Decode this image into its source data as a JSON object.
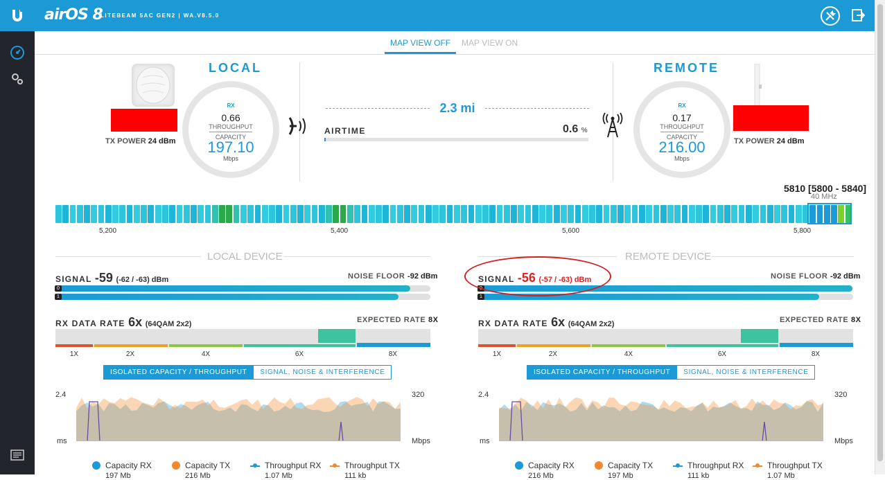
{
  "header": {
    "brand": "airOS 8",
    "device_line": "LITEBEAM 5AC GEN2 | WA.V8.5.0"
  },
  "view_tabs": [
    {
      "label": "MAP VIEW OFF",
      "active": true
    },
    {
      "label": "MAP VIEW ON",
      "active": false
    }
  ],
  "local": {
    "title": "LOCAL",
    "tx_power_label": "TX POWER",
    "tx_power_value": "24 dBm",
    "gauge": {
      "rx_label": "RX",
      "throughput": "0.66",
      "throughput_label": "THROUGHPUT",
      "capacity_label": "CAPACITY",
      "capacity": "197.10",
      "unit": "Mbps"
    }
  },
  "remote": {
    "title": "REMOTE",
    "tx_power_label": "TX POWER",
    "tx_power_value": "24 dBm",
    "gauge": {
      "rx_label": "RX",
      "throughput": "0.17",
      "throughput_label": "THROUGHPUT",
      "capacity_label": "CAPACITY",
      "capacity": "216.00",
      "unit": "Mbps"
    }
  },
  "link": {
    "distance": "2.3  mi",
    "airtime_label": "AIRTIME",
    "airtime_value": "0.6",
    "airtime_unit": "%",
    "airtime_fraction": 0.006
  },
  "frequency": {
    "label": "5810 [5800 - 5840]",
    "width": "40 MHz",
    "ticks": [
      "5,200",
      "5,400",
      "5,600",
      "5,800"
    ]
  },
  "local_device": {
    "header": "LOCAL DEVICE",
    "signal_label": "SIGNAL",
    "signal_value": "-59",
    "signal_chains": "(-62 / -63) dBm",
    "noise_label": "NOISE FLOOR",
    "noise_value": "-92 dBm",
    "chain0_label": "0",
    "chain1_label": "1",
    "chain0_fraction": 0.947,
    "chain1_fraction": 0.915,
    "rx_rate_label": "RX DATA RATE",
    "rx_rate_value": "6x",
    "rx_rate_mod": "(64QAM 2x2)",
    "expected_label": "EXPECTED RATE",
    "expected_value": "8X",
    "rate_ticks": [
      "1X",
      "2X",
      "4X",
      "6X",
      "8X"
    ],
    "btn_capacity": "ISOLATED CAPACITY / THROUGHPUT",
    "btn_signal": "SIGNAL, NOISE & INTERFERENCE",
    "y_left_max": "2.4",
    "y_right_max": "320",
    "y_left_unit": "ms",
    "y_right_unit": "Mbps",
    "legend": [
      {
        "label": "Capacity RX",
        "sub": "197 Mb"
      },
      {
        "label": "Capacity TX",
        "sub": "216 Mb"
      },
      {
        "label": "Throughput RX",
        "sub": "1.07 Mb"
      },
      {
        "label": "Throughput TX",
        "sub": "111 kb"
      }
    ]
  },
  "remote_device": {
    "header": "REMOTE DEVICE",
    "signal_label": "SIGNAL",
    "signal_value": "-56",
    "signal_chains": "(-57 / -63) dBm",
    "noise_label": "NOISE FLOOR",
    "noise_value": "-92 dBm",
    "chain0_label": "0",
    "chain1_label": "1",
    "chain0_fraction": 0.998,
    "chain1_fraction": 0.91,
    "rx_rate_label": "RX DATA RATE",
    "rx_rate_value": "6x",
    "rx_rate_mod": "(64QAM 2x2)",
    "expected_label": "EXPECTED RATE",
    "expected_value": "8X",
    "rate_ticks": [
      "1X",
      "2X",
      "4X",
      "6X",
      "8X"
    ],
    "btn_capacity": "ISOLATED CAPACITY / THROUGHPUT",
    "btn_signal": "SIGNAL, NOISE & INTERFERENCE",
    "y_left_max": "2.4",
    "y_right_max": "320",
    "y_left_unit": "ms",
    "y_right_unit": "Mbps",
    "legend": [
      {
        "label": "Capacity RX",
        "sub": "216 Mb"
      },
      {
        "label": "Capacity TX",
        "sub": "197 Mb"
      },
      {
        "label": "Throughput RX",
        "sub": "111 kb"
      },
      {
        "label": "Throughput TX",
        "sub": "1.07 Mb"
      }
    ]
  },
  "colors": {
    "accent": "#1b9ad6",
    "capacity_rx": "#1b9ad6",
    "capacity_tx": "#f08a2c",
    "throughput_rx": "#1b9ad6",
    "throughput_tx": "#f08a2c",
    "latency": "#6a4aa8",
    "highlight": "#d02020"
  }
}
